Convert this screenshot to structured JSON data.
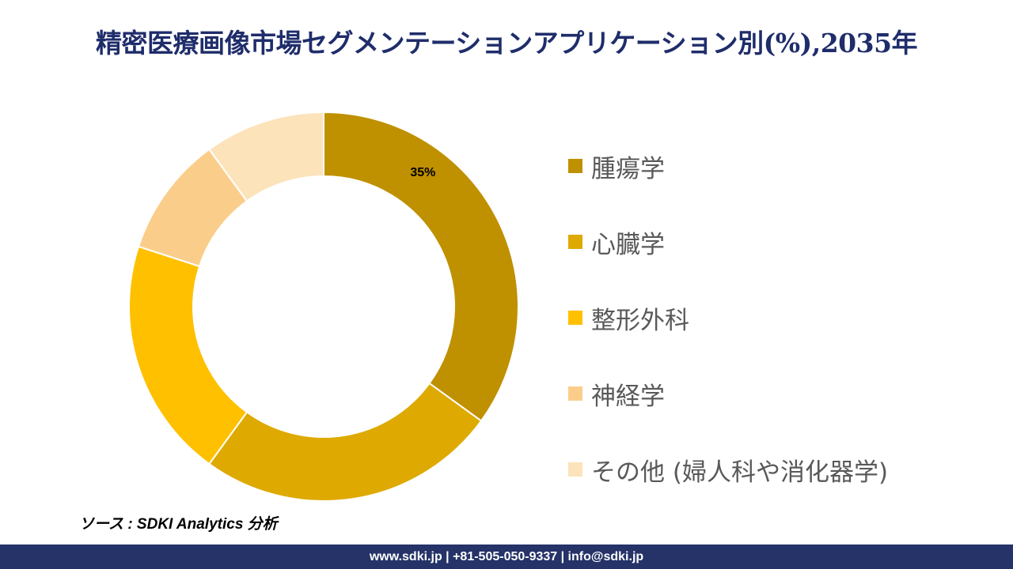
{
  "title": "精密医療画像市場セグメンテーションアプリケーション別(%),2035年",
  "chart_data": {
    "type": "pie",
    "donut": true,
    "categories": [
      "腫瘍学",
      "心臓学",
      "整形外科",
      "神経学",
      "その他 (婦人科や消化器学)"
    ],
    "values": [
      35,
      25,
      20,
      10,
      10
    ],
    "colors": [
      "#BF9000",
      "#DEA900",
      "#FFC000",
      "#FACE8A",
      "#FCE3BA"
    ],
    "data_labels": [
      "35%",
      "",
      "",
      "",
      ""
    ],
    "legend_position": "right"
  },
  "source": "ソース : SDKI Analytics 分析",
  "footer": "www.sdki.jp | +81-505-050-9337 | info@sdki.jp"
}
